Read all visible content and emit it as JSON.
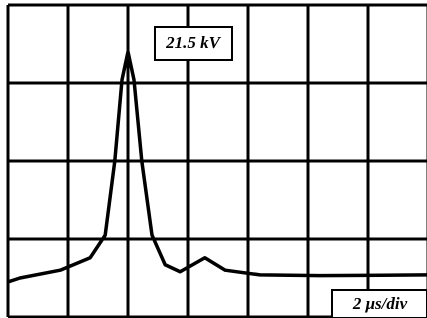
{
  "chart_data": {
    "type": "line",
    "annotations": [
      "21.5 kV",
      "2 μs/div"
    ],
    "xlim": [
      0,
      7
    ],
    "ylim": [
      0,
      4
    ],
    "grid": true,
    "x": [
      0,
      0.2,
      0.87,
      1.37,
      1.62,
      1.78,
      1.9,
      2.0,
      2.1,
      2.23,
      2.4,
      2.62,
      2.87,
      3.28,
      3.62,
      4.2,
      5.2,
      6.98
    ],
    "values": [
      0.45,
      0.5,
      0.6,
      0.76,
      1.05,
      2.0,
      3.04,
      3.4,
      3.04,
      2.0,
      1.05,
      0.67,
      0.58,
      0.76,
      0.6,
      0.54,
      0.53,
      0.54
    ],
    "color": "#000000"
  }
}
